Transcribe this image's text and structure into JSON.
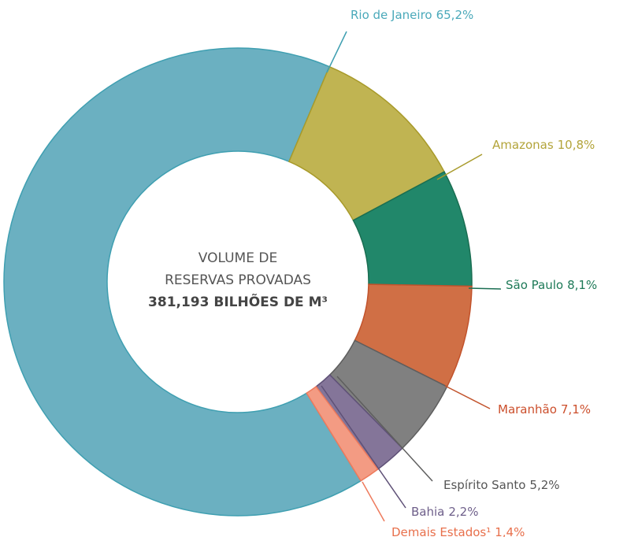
{
  "chart_data": {
    "type": "donut",
    "center_lines": [
      "VOLUME DE",
      "RESERVAS PROVADAS",
      "381,193 BILHÕES DE M³"
    ],
    "categories": [
      "Rio de Janeiro",
      "Amazonas",
      "São Paulo",
      "Maranhão",
      "Espírito Santo",
      "Bahia",
      "Demais Estados¹"
    ],
    "values": [
      65.2,
      10.8,
      8.1,
      7.1,
      5.2,
      2.2,
      1.4
    ],
    "value_labels": [
      "65,2%",
      "10,8%",
      "8,1%",
      "7,1%",
      "5,2%",
      "2,2%",
      "1,4%"
    ],
    "colors": [
      "#6bb0c1",
      "#c0b452",
      "#21876a",
      "#d06f45",
      "#808080",
      "#847599",
      "#f39b83"
    ]
  }
}
